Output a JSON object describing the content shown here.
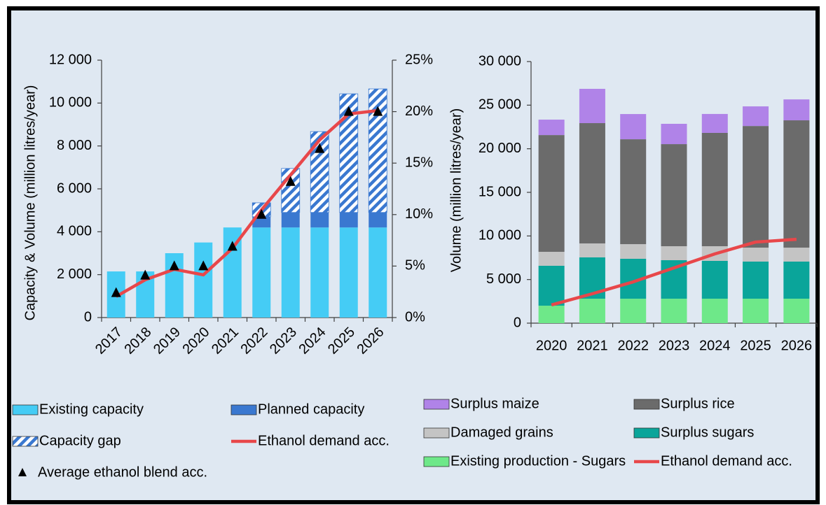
{
  "chart_data": [
    {
      "type": "bar",
      "stacked": true,
      "y_label": "Capacity & Volume (million litres/year)",
      "categories": [
        "2017",
        "2018",
        "2019",
        "2020",
        "2021",
        "2022",
        "2023",
        "2024",
        "2025",
        "2026"
      ],
      "ylim": [
        0,
        12000
      ],
      "yticks": [
        0,
        {
          "value": 2000,
          "label": "2 000"
        },
        {
          "value": 4000,
          "label": "4 000"
        },
        {
          "value": 6000,
          "label": "6 000"
        },
        {
          "value": 8000,
          "label": "8 000"
        },
        {
          "value": 10000,
          "label": "10 000"
        },
        {
          "value": 12000,
          "label": "12 000"
        }
      ],
      "y2lim": [
        0,
        25
      ],
      "y2ticks": [
        {
          "value": 0,
          "label": "0%"
        },
        {
          "value": 5,
          "label": "5%"
        },
        {
          "value": 10,
          "label": "10%"
        },
        {
          "value": 15,
          "label": "15%"
        },
        {
          "value": 20,
          "label": "20%"
        },
        {
          "value": 25,
          "label": "25%"
        }
      ],
      "grid": false,
      "series": [
        {
          "name": "Existing capacity",
          "kind": "bar",
          "color": "#45ccf5",
          "values": [
            2150,
            2150,
            3000,
            3500,
            4200,
            4200,
            4200,
            4200,
            4200,
            4200
          ]
        },
        {
          "name": "Planned capacity",
          "kind": "bar",
          "color": "#3a78d0",
          "values": [
            0,
            0,
            0,
            0,
            0,
            500,
            700,
            700,
            700,
            700
          ]
        },
        {
          "name": "Capacity gap",
          "kind": "bar",
          "color": "#3a78d0",
          "pattern": "hatch",
          "values": [
            0,
            0,
            0,
            0,
            0,
            650,
            2050,
            3770,
            5530,
            5760
          ]
        },
        {
          "name": "Ethanol demand acc.",
          "kind": "line",
          "color": "#e8474a",
          "values": [
            980,
            1760,
            2250,
            1990,
            3230,
            5020,
            6650,
            8280,
            9490,
            9650
          ]
        },
        {
          "name": "Average ethanol blend acc.",
          "kind": "marker",
          "axis": "y2",
          "color": "#000000",
          "values": [
            2.4,
            4.1,
            5.0,
            5.0,
            6.9,
            10.0,
            13.2,
            16.4,
            20.0,
            20.0
          ]
        }
      ]
    },
    {
      "type": "bar",
      "stacked": true,
      "y_label": "Volume (million litres/year)",
      "categories": [
        "2020",
        "2021",
        "2022",
        "2023",
        "2024",
        "2025",
        "2026"
      ],
      "ylim": [
        0,
        30000
      ],
      "yticks": [
        0,
        {
          "value": 5000,
          "label": "5 000"
        },
        {
          "value": 10000,
          "label": "10 000"
        },
        {
          "value": 15000,
          "label": "15 000"
        },
        {
          "value": 20000,
          "label": "20 000"
        },
        {
          "value": 25000,
          "label": "25 000"
        },
        {
          "value": 30000,
          "label": "30 000"
        }
      ],
      "grid": false,
      "series": [
        {
          "name": "Existing production - Sugars",
          "kind": "bar",
          "color": "#6ee889",
          "values": [
            2000,
            2800,
            2800,
            2800,
            2800,
            2800,
            2800
          ]
        },
        {
          "name": "Surplus sugars",
          "kind": "bar",
          "color": "#0aa59a",
          "values": [
            4580,
            4740,
            4580,
            4420,
            4340,
            4260,
            4260
          ]
        },
        {
          "name": "Damaged grains",
          "kind": "bar",
          "color": "#c4c4c4",
          "values": [
            1600,
            1600,
            1680,
            1600,
            1680,
            1600,
            1600
          ]
        },
        {
          "name": "Surplus rice",
          "kind": "bar",
          "color": "#6b6b6b",
          "values": [
            13390,
            13800,
            12030,
            11710,
            13000,
            13950,
            14600
          ]
        },
        {
          "name": "Surplus maize",
          "kind": "bar",
          "color": "#b083e8",
          "values": [
            1770,
            3930,
            2890,
            2330,
            2170,
            2250,
            2400
          ]
        },
        {
          "name": "Ethanol demand acc.",
          "kind": "line",
          "color": "#e8474a",
          "values": [
            2090,
            3370,
            4730,
            6340,
            7940,
            9300,
            9620
          ]
        }
      ]
    }
  ]
}
